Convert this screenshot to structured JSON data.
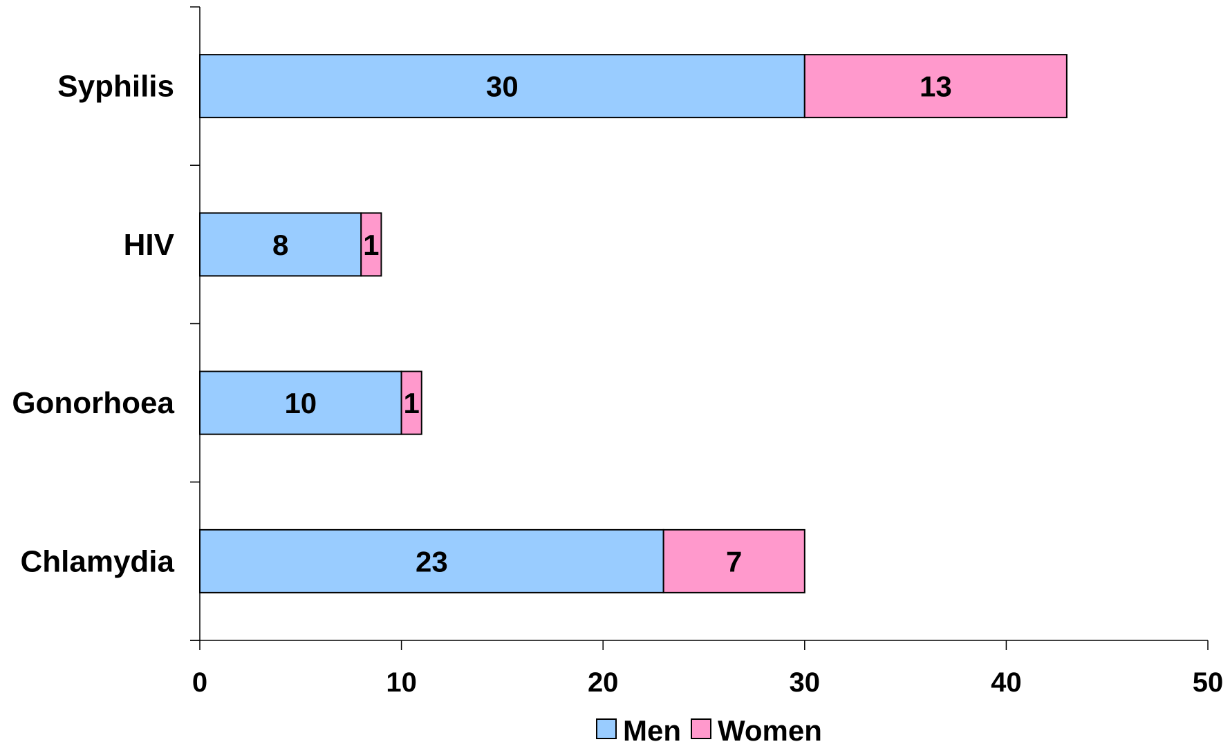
{
  "chart_data": {
    "type": "bar",
    "orientation": "horizontal",
    "stacked": true,
    "categories": [
      "Syphilis",
      "HIV",
      "Gonorhoea",
      "Chlamydia"
    ],
    "series": [
      {
        "name": "Men",
        "values": [
          30,
          8,
          10,
          23
        ],
        "color": "#99ccff"
      },
      {
        "name": "Women",
        "values": [
          13,
          1,
          1,
          7
        ],
        "color": "#ff99cc"
      }
    ],
    "xlim": [
      0,
      50
    ],
    "xticks": [
      "0",
      "10",
      "20",
      "30",
      "40",
      "50"
    ],
    "grid": false,
    "legend_position": "bottom"
  }
}
